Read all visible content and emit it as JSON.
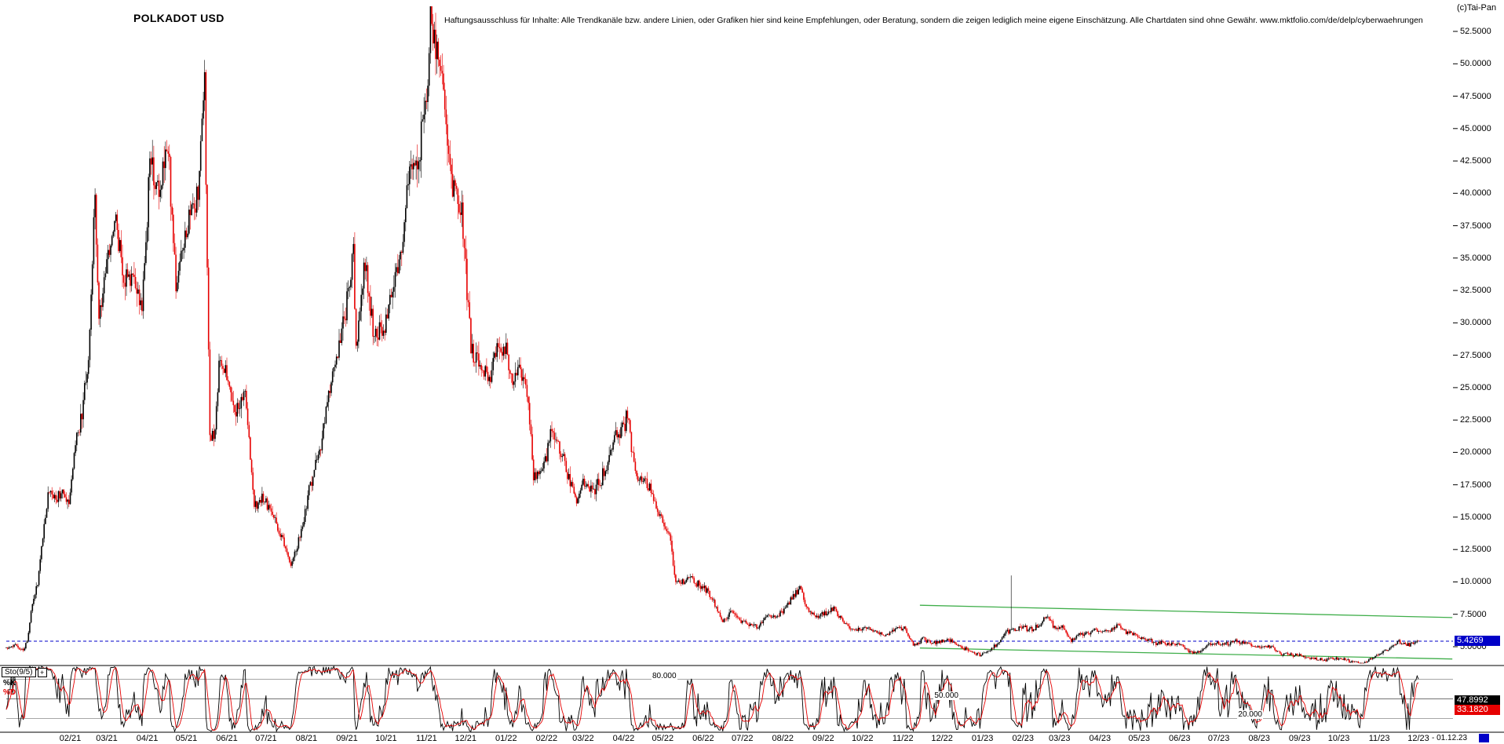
{
  "header": {
    "title": "POLKADOT USD",
    "disclaimer": "Haftungsausschluss für Inhalte: Alle Trendkanäle bzw. andere Linien, oder Grafiken hier sind keine Empfehlungen, oder Beratung, sondern die zeigen lediglich meine eigene Einschätzung. Alle Chartdaten sind ohne Gewähr.  www.mktfolio.com/de/delp/cyberwaehrungen",
    "copyright": "(c)Tai-Pan"
  },
  "icons": {
    "indicator_settings": "+"
  },
  "price_axis": {
    "tick_labels": [
      "52.5000",
      "50.0000",
      "47.5000",
      "45.0000",
      "42.5000",
      "40.0000",
      "37.5000",
      "35.0000",
      "32.5000",
      "30.0000",
      "27.5000",
      "25.0000",
      "22.5000",
      "20.0000",
      "17.5000",
      "15.0000",
      "12.5000",
      "10.0000",
      "7.5000",
      "5.0000"
    ],
    "tick_values": [
      52.5,
      50.0,
      47.5,
      45.0,
      42.5,
      40.0,
      37.5,
      35.0,
      32.5,
      30.0,
      27.5,
      25.0,
      22.5,
      20.0,
      17.5,
      15.0,
      12.5,
      10.0,
      7.5,
      5.0
    ],
    "last_price_label": "5.4269",
    "last_price_value": 5.4269,
    "tag_bg": "#0000c8"
  },
  "x_axis": {
    "month_labels": [
      {
        "label": "02/21",
        "day": 49
      },
      {
        "label": "03/21",
        "day": 77
      },
      {
        "label": "04/21",
        "day": 108
      },
      {
        "label": "05/21",
        "day": 138
      },
      {
        "label": "06/21",
        "day": 169
      },
      {
        "label": "07/21",
        "day": 199
      },
      {
        "label": "08/21",
        "day": 230
      },
      {
        "label": "09/21",
        "day": 261
      },
      {
        "label": "10/21",
        "day": 291
      },
      {
        "label": "11/21",
        "day": 322
      },
      {
        "label": "12/21",
        "day": 352
      },
      {
        "label": "01/22",
        "day": 383
      },
      {
        "label": "02/22",
        "day": 414
      },
      {
        "label": "03/22",
        "day": 442
      },
      {
        "label": "04/22",
        "day": 473
      },
      {
        "label": "05/22",
        "day": 503
      },
      {
        "label": "06/22",
        "day": 534
      },
      {
        "label": "07/22",
        "day": 564
      },
      {
        "label": "08/22",
        "day": 595
      },
      {
        "label": "09/22",
        "day": 626
      },
      {
        "label": "10/22",
        "day": 656
      },
      {
        "label": "11/22",
        "day": 687
      },
      {
        "label": "12/22",
        "day": 717
      },
      {
        "label": "01/23",
        "day": 748
      },
      {
        "label": "02/23",
        "day": 779
      },
      {
        "label": "03/23",
        "day": 807
      },
      {
        "label": "04/23",
        "day": 838
      },
      {
        "label": "05/23",
        "day": 868
      },
      {
        "label": "06/23",
        "day": 899
      },
      {
        "label": "07/23",
        "day": 929
      },
      {
        "label": "08/23",
        "day": 960
      },
      {
        "label": "09/23",
        "day": 991
      },
      {
        "label": "10/23",
        "day": 1021
      },
      {
        "label": "11/23",
        "day": 1052
      },
      {
        "label": "12/23",
        "day": 1082
      }
    ],
    "end_date_label": "- 01.12.23"
  },
  "stochastic_panel": {
    "indicator_label": "Sto(9/5)",
    "k_label": "%K",
    "d_label": "%D",
    "k_value_label": "47.8992",
    "d_value_label": "33.1820",
    "k_value": 47.8992,
    "d_value": 33.182,
    "k_color": "#000000",
    "d_color": "#e60000",
    "ref_lines": [
      {
        "label": "80.000",
        "value": 80
      },
      {
        "label": "50.000",
        "value": 50
      },
      {
        "label": "20.000",
        "value": 20
      }
    ]
  },
  "chart_data": {
    "type": "candlestick",
    "symbol": "POLKADOT USD",
    "timeframe": "daily",
    "x_start": "2020-12-14",
    "x_end": "01.12.23",
    "total_days": 1083,
    "last_close": 5.4269,
    "ylim": [
      3.7,
      54.9
    ],
    "y_ticks": [
      5.0,
      7.5,
      10.0,
      12.5,
      15.0,
      17.5,
      20.0,
      22.5,
      25.0,
      27.5,
      30.0,
      32.5,
      35.0,
      37.5,
      40.0,
      42.5,
      45.0,
      47.5,
      50.0,
      52.5
    ],
    "grid": false,
    "colors": {
      "up": "#000000",
      "down": "#e60000"
    },
    "price_anchors": [
      [
        0,
        4.9
      ],
      [
        7,
        5.1
      ],
      [
        13,
        4.65
      ],
      [
        16,
        5.5
      ],
      [
        20,
        8.3
      ],
      [
        24,
        9.7
      ],
      [
        28,
        13.5
      ],
      [
        33,
        17.2
      ],
      [
        37,
        16.3
      ],
      [
        42,
        16.8
      ],
      [
        48,
        16.2
      ],
      [
        53,
        20.5
      ],
      [
        58,
        23.0
      ],
      [
        63,
        27.5
      ],
      [
        68,
        40.5
      ],
      [
        71,
        30.0
      ],
      [
        76,
        33.5
      ],
      [
        84,
        37.5
      ],
      [
        91,
        33.5
      ],
      [
        98,
        33.0
      ],
      [
        104,
        31.0
      ],
      [
        110,
        42.0
      ],
      [
        117,
        40.0
      ],
      [
        124,
        44.0
      ],
      [
        130,
        32.5
      ],
      [
        135,
        35.5
      ],
      [
        141,
        38.0
      ],
      [
        147,
        40.0
      ],
      [
        152,
        48.0
      ],
      [
        156,
        21.0
      ],
      [
        160,
        21.5
      ],
      [
        163,
        27.0
      ],
      [
        169,
        26.0
      ],
      [
        176,
        23.0
      ],
      [
        183,
        24.5
      ],
      [
        190,
        15.8
      ],
      [
        197,
        16.5
      ],
      [
        204,
        15.2
      ],
      [
        212,
        13.2
      ],
      [
        218,
        11.0
      ],
      [
        226,
        14.0
      ],
      [
        233,
        17.5
      ],
      [
        240,
        20.0
      ],
      [
        247,
        24.5
      ],
      [
        254,
        27.5
      ],
      [
        261,
        31.5
      ],
      [
        266,
        35.5
      ],
      [
        268,
        28.0
      ],
      [
        275,
        35.0
      ],
      [
        281,
        29.5
      ],
      [
        288,
        29.0
      ],
      [
        295,
        32.0
      ],
      [
        302,
        35.0
      ],
      [
        309,
        42.0
      ],
      [
        316,
        42.5
      ],
      [
        322,
        47.5
      ],
      [
        325,
        53.0
      ],
      [
        330,
        50.5
      ],
      [
        336,
        46.5
      ],
      [
        342,
        41.0
      ],
      [
        349,
        38.5
      ],
      [
        354,
        31.0
      ],
      [
        356,
        28.0
      ],
      [
        362,
        27.0
      ],
      [
        369,
        25.5
      ],
      [
        376,
        28.0
      ],
      [
        383,
        27.5
      ],
      [
        388,
        25.0
      ],
      [
        394,
        26.5
      ],
      [
        400,
        24.0
      ],
      [
        404,
        18.0
      ],
      [
        411,
        18.5
      ],
      [
        417,
        21.5
      ],
      [
        424,
        20.5
      ],
      [
        430,
        18.5
      ],
      [
        437,
        15.8
      ],
      [
        442,
        18.0
      ],
      [
        449,
        16.8
      ],
      [
        456,
        18.0
      ],
      [
        463,
        20.0
      ],
      [
        471,
        22.0
      ],
      [
        476,
        22.8
      ],
      [
        483,
        17.8
      ],
      [
        490,
        18.0
      ],
      [
        497,
        16.0
      ],
      [
        503,
        14.8
      ],
      [
        509,
        13.2
      ],
      [
        513,
        9.8
      ],
      [
        518,
        10.0
      ],
      [
        524,
        10.2
      ],
      [
        531,
        9.8
      ],
      [
        537,
        9.3
      ],
      [
        543,
        8.2
      ],
      [
        549,
        7.0
      ],
      [
        556,
        7.6
      ],
      [
        562,
        7.1
      ],
      [
        569,
        6.8
      ],
      [
        576,
        6.4
      ],
      [
        583,
        7.4
      ],
      [
        590,
        7.2
      ],
      [
        597,
        8.0
      ],
      [
        604,
        9.0
      ],
      [
        608,
        9.6
      ],
      [
        614,
        7.9
      ],
      [
        621,
        7.2
      ],
      [
        628,
        7.6
      ],
      [
        635,
        7.9
      ],
      [
        641,
        6.9
      ],
      [
        647,
        6.3
      ],
      [
        654,
        6.4
      ],
      [
        661,
        6.4
      ],
      [
        668,
        6.0
      ],
      [
        675,
        5.9
      ],
      [
        682,
        6.5
      ],
      [
        688,
        6.4
      ],
      [
        694,
        5.4
      ],
      [
        696,
        5.1
      ],
      [
        702,
        5.6
      ],
      [
        709,
        5.3
      ],
      [
        716,
        5.4
      ],
      [
        723,
        5.5
      ],
      [
        730,
        5.0
      ],
      [
        737,
        4.7
      ],
      [
        746,
        4.35
      ],
      [
        753,
        4.7
      ],
      [
        759,
        5.2
      ],
      [
        765,
        6.1
      ],
      [
        772,
        6.3
      ],
      [
        779,
        6.5
      ],
      [
        786,
        6.3
      ],
      [
        793,
        6.8
      ],
      [
        797,
        7.4
      ],
      [
        803,
        6.5
      ],
      [
        810,
        6.4
      ],
      [
        816,
        5.5
      ],
      [
        823,
        6.0
      ],
      [
        830,
        6.1
      ],
      [
        837,
        6.3
      ],
      [
        844,
        6.1
      ],
      [
        851,
        6.7
      ],
      [
        858,
        6.1
      ],
      [
        865,
        5.9
      ],
      [
        872,
        5.7
      ],
      [
        879,
        5.3
      ],
      [
        886,
        5.3
      ],
      [
        893,
        5.25
      ],
      [
        899,
        5.2
      ],
      [
        907,
        4.5
      ],
      [
        913,
        4.6
      ],
      [
        920,
        5.1
      ],
      [
        928,
        5.25
      ],
      [
        935,
        5.2
      ],
      [
        941,
        5.45
      ],
      [
        948,
        5.3
      ],
      [
        955,
        5.1
      ],
      [
        962,
        5.0
      ],
      [
        969,
        5.05
      ],
      [
        976,
        4.45
      ],
      [
        983,
        4.4
      ],
      [
        990,
        4.3
      ],
      [
        997,
        4.2
      ],
      [
        1004,
        4.05
      ],
      [
        1011,
        4.0
      ],
      [
        1018,
        4.1
      ],
      [
        1025,
        4.0
      ],
      [
        1032,
        3.8
      ],
      [
        1039,
        3.7
      ],
      [
        1046,
        4.1
      ],
      [
        1053,
        4.4
      ],
      [
        1060,
        4.9
      ],
      [
        1067,
        5.4
      ],
      [
        1073,
        5.1
      ],
      [
        1079,
        5.25
      ],
      [
        1082,
        5.4269
      ]
    ],
    "anomaly_spike": {
      "day": 770,
      "high": 10.5
    },
    "channel_lines": [
      {
        "start_day": 700,
        "start_price": 8.2,
        "end_day": 1108,
        "end_price": 7.25,
        "color": "#3fae4a"
      },
      {
        "start_day": 700,
        "start_price": 4.9,
        "end_day": 1108,
        "end_price": 4.05,
        "color": "#3fae4a"
      }
    ],
    "last_price_line": {
      "value": 5.4269,
      "color": "#0000c8",
      "style": "dashed"
    },
    "indicator": {
      "name": "Stochastic",
      "label": "Sto(9/5)",
      "k_period": 9,
      "d_period": 5,
      "ref_lines": [
        80,
        50,
        20
      ],
      "k_last": 47.8992,
      "d_last": 33.182
    }
  }
}
